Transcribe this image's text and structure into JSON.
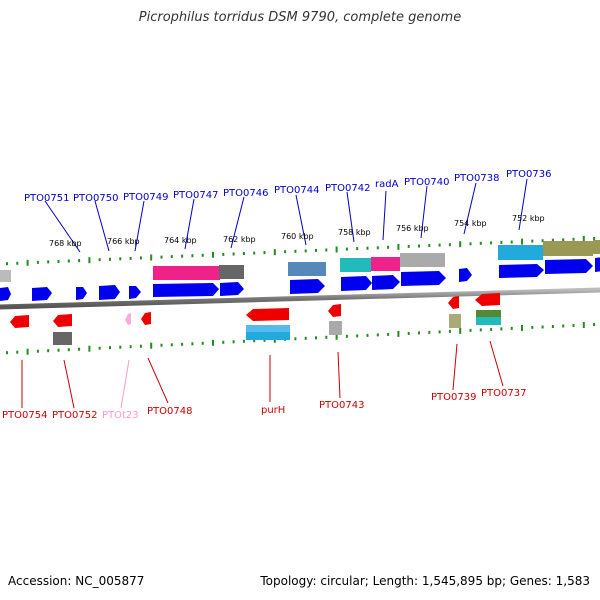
{
  "title": "Picrophilus torridus DSM 9790, complete genome",
  "footer": {
    "accession": "Accession: NC_005877",
    "summary": "Topology: circular; Length: 1,545,895 bp; Genes: 1,583"
  },
  "colors": {
    "forward_gene": "#0000ee",
    "reverse_gene": "#ee0000",
    "top_label": "#0000cc",
    "bottom_label": "#cc0000",
    "trna_label": "#ff99cc",
    "backbone": "#7a7a7a",
    "tick": "#228b22"
  },
  "scale_labels": [
    "768 kbp",
    "766 kbp",
    "764 kbp",
    "762 kbp",
    "760 kbp",
    "758 kbp",
    "756 kbp",
    "754 kbp",
    "752 kbp"
  ],
  "top_genes": [
    "PTO0751",
    "PTO0750",
    "PTO0749",
    "PTO0747",
    "PTO0746",
    "PTO0744",
    "PTO0742",
    "radA",
    "PTO0740",
    "PTO0738",
    "PTO0736"
  ],
  "bottom_genes": [
    "PTO0754",
    "PTO0752",
    "PTOt23",
    "PTO0748",
    "purH",
    "PTO0743",
    "PTO0739",
    "PTO0737"
  ]
}
